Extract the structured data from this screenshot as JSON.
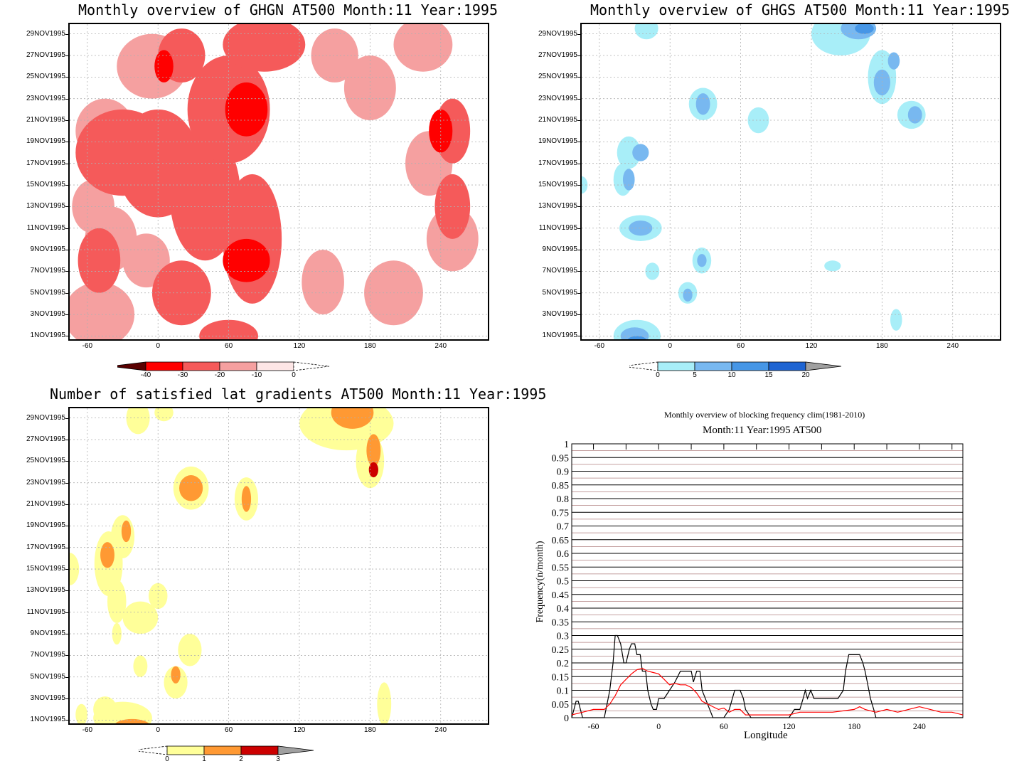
{
  "chart_data": [
    {
      "type": "heatmap",
      "title": "Monthly overview of GHGN AT500 Month:11 Year:1995",
      "x_ticks": [
        -60,
        0,
        60,
        120,
        180,
        240
      ],
      "xlim": [
        -75,
        280
      ],
      "y_ticks": [
        "1NOV1995",
        "3NOV1995",
        "5NOV1995",
        "7NOV1995",
        "9NOV1995",
        "11NOV1995",
        "13NOV1995",
        "15NOV1995",
        "17NOV1995",
        "19NOV1995",
        "21NOV1995",
        "23NOV1995",
        "25NOV1995",
        "27NOV1995",
        "29NOV1995"
      ],
      "colorbar": {
        "labels": [
          "-40",
          "-30",
          "-20",
          "-10",
          "0"
        ],
        "colors": [
          "#5a0000",
          "#ff0000",
          "#f55a5a",
          "#f5a0a0",
          "#fde6e6"
        ]
      },
      "regions": [
        {
          "level": -10,
          "color": "#f5a0a0",
          "blobs": [
            [
              -50,
              3,
              30,
              3
            ],
            [
              -40,
              10,
              22,
              3
            ],
            [
              -10,
              8,
              20,
              2.5
            ],
            [
              -45,
              20,
              25,
              3
            ],
            [
              -5,
              26,
              30,
              3
            ],
            [
              20,
              18,
              18,
              2.5
            ],
            [
              140,
              6,
              18,
              3
            ],
            [
              200,
              5,
              25,
              3
            ],
            [
              250,
              10,
              22,
              3
            ],
            [
              230,
              17,
              20,
              3
            ],
            [
              180,
              24,
              22,
              3
            ],
            [
              150,
              27,
              20,
              2.5
            ],
            [
              225,
              28,
              25,
              2.5
            ],
            [
              -55,
              13,
              18,
              2.5
            ],
            [
              35,
              11,
              15,
              2
            ]
          ]
        },
        {
          "level": -20,
          "color": "#f55a5a",
          "blobs": [
            [
              -30,
              18,
              40,
              4
            ],
            [
              0,
              17,
              35,
              5
            ],
            [
              40,
              14,
              30,
              6
            ],
            [
              60,
              22,
              35,
              5
            ],
            [
              80,
              10,
              25,
              6
            ],
            [
              20,
              5,
              25,
              3
            ],
            [
              -50,
              8,
              18,
              3
            ],
            [
              90,
              28,
              35,
              2.5
            ],
            [
              250,
              20,
              15,
              3
            ],
            [
              250,
              13,
              15,
              3
            ],
            [
              20,
              27,
              20,
              2.5
            ],
            [
              60,
              1,
              25,
              1.5
            ]
          ]
        },
        {
          "level": -30,
          "color": "#ff0000",
          "blobs": [
            [
              75,
              22,
              18,
              2.5
            ],
            [
              75,
              8,
              20,
              2
            ],
            [
              240,
              20,
              10,
              2
            ],
            [
              5,
              26,
              8,
              1.5
            ]
          ]
        }
      ]
    },
    {
      "type": "heatmap",
      "title": "Monthly overview of GHGS AT500 Month:11 Year:1995",
      "x_ticks": [
        -60,
        0,
        60,
        120,
        180,
        240
      ],
      "xlim": [
        -75,
        280
      ],
      "y_ticks": [
        "1NOV1995",
        "3NOV1995",
        "5NOV1995",
        "7NOV1995",
        "9NOV1995",
        "11NOV1995",
        "13NOV1995",
        "15NOV1995",
        "17NOV1995",
        "19NOV1995",
        "21NOV1995",
        "23NOV1995",
        "25NOV1995",
        "27NOV1995",
        "29NOV1995"
      ],
      "colorbar": {
        "labels": [
          "0",
          "5",
          "10",
          "15",
          "20"
        ],
        "colors": [
          "#a8eef8",
          "#78b8f0",
          "#4696e6",
          "#1e64d2",
          "#a0a0a0"
        ]
      },
      "regions": [
        {
          "level": 5,
          "color": "#a8eef8",
          "blobs": [
            [
              -20,
              29.5,
              10,
              1
            ],
            [
              -35,
              18,
              10,
              1.5
            ],
            [
              -40,
              15.5,
              8,
              1.5
            ],
            [
              -25,
              11,
              18,
              1.2
            ],
            [
              -15,
              7,
              6,
              0.8
            ],
            [
              28,
              22.5,
              12,
              1.5
            ],
            [
              27,
              8,
              8,
              1.2
            ],
            [
              15,
              5,
              8,
              1
            ],
            [
              75,
              21,
              9,
              1.2
            ],
            [
              145,
              29,
              25,
              2
            ],
            [
              180,
              25,
              12,
              2.5
            ],
            [
              205,
              21.5,
              12,
              1.3
            ],
            [
              192,
              2.5,
              5,
              1
            ],
            [
              -28,
              1,
              20,
              1.5
            ],
            [
              138,
              7.5,
              7,
              0.5
            ],
            [
              -75,
              15,
              5,
              0.8
            ]
          ]
        },
        {
          "level": 10,
          "color": "#78b8f0",
          "blobs": [
            [
              -25,
              18,
              7,
              0.8
            ],
            [
              -35,
              15.5,
              5,
              1
            ],
            [
              -25,
              11,
              10,
              0.7
            ],
            [
              27,
              8,
              4,
              0.6
            ],
            [
              15,
              4.8,
              4,
              0.6
            ],
            [
              28,
              22.5,
              6,
              1
            ],
            [
              180,
              24.5,
              7,
              1.2
            ],
            [
              190,
              26.5,
              5,
              0.8
            ],
            [
              208,
              21.5,
              6,
              0.8
            ],
            [
              160,
              29.5,
              15,
              1
            ],
            [
              -30,
              1,
              12,
              0.8
            ]
          ]
        },
        {
          "level": 15,
          "color": "#4696e6",
          "blobs": [
            [
              165,
              29.5,
              8,
              0.5
            ],
            [
              -28,
              0.6,
              8,
              0.4
            ]
          ]
        }
      ]
    },
    {
      "type": "heatmap",
      "title": "Number of satisfied lat gradients AT500 Month:11 Year:1995",
      "x_ticks": [
        -60,
        0,
        60,
        120,
        180,
        240
      ],
      "xlim": [
        -75,
        280
      ],
      "y_ticks": [
        "1NOV1995",
        "3NOV1995",
        "5NOV1995",
        "7NOV1995",
        "9NOV1995",
        "11NOV1995",
        "13NOV1995",
        "15NOV1995",
        "17NOV1995",
        "19NOV1995",
        "21NOV1995",
        "23NOV1995",
        "25NOV1995",
        "27NOV1995",
        "29NOV1995"
      ],
      "colorbar": {
        "labels": [
          "0",
          "1",
          "2",
          "3"
        ],
        "colors": [
          "#ffff99",
          "#ff9933",
          "#cc0000",
          "#a0a0a0"
        ]
      },
      "regions": [
        {
          "level": 1,
          "color": "#ffff99",
          "blobs": [
            [
              -17,
              29,
              10,
              1.5
            ],
            [
              5,
              29.5,
              8,
              0.8
            ],
            [
              160,
              28.5,
              40,
              2.5
            ],
            [
              180,
              25,
              12,
              2.5
            ],
            [
              28,
              22.5,
              15,
              2
            ],
            [
              75,
              21.5,
              10,
              2
            ],
            [
              -30,
              18,
              10,
              2
            ],
            [
              -42,
              15.5,
              12,
              3
            ],
            [
              -35,
              12,
              8,
              2
            ],
            [
              -15,
              10.5,
              15,
              1.5
            ],
            [
              0,
              12.5,
              8,
              1.2
            ],
            [
              -35,
              9,
              4,
              1
            ],
            [
              27,
              7.5,
              10,
              1.5
            ],
            [
              15,
              4.5,
              10,
              1.5
            ],
            [
              -15,
              6,
              6,
              1
            ],
            [
              -75,
              15,
              8,
              1.5
            ],
            [
              192,
              2.5,
              6,
              2
            ],
            [
              -30,
              1.2,
              25,
              1.5
            ],
            [
              -45,
              2,
              10,
              1.2
            ],
            [
              -65,
              1.5,
              5,
              1
            ]
          ]
        },
        {
          "level": 2,
          "color": "#ff9933",
          "blobs": [
            [
              165,
              29.5,
              18,
              1.5
            ],
            [
              183,
              26,
              6,
              1.5
            ],
            [
              28,
              22.5,
              10,
              1.2
            ],
            [
              75,
              21.5,
              4,
              1.2
            ],
            [
              -27,
              18.5,
              4,
              1
            ],
            [
              -43,
              16.3,
              6,
              1.2
            ],
            [
              15,
              5.2,
              4,
              0.8
            ],
            [
              -22,
              0.5,
              15,
              0.6
            ]
          ]
        },
        {
          "level": 3,
          "color": "#cc0000",
          "blobs": [
            [
              183,
              24.2,
              4,
              0.7
            ]
          ]
        }
      ]
    },
    {
      "type": "line",
      "title": "Monthly overview of blocking frequency clim(1981-2010)",
      "subtitle": "Month:11 Year:1995  AT500",
      "xlabel": "Longitude",
      "ylabel": "Frequency(n/month)",
      "xlim": [
        -80,
        280
      ],
      "ylim": [
        0,
        1
      ],
      "x_ticks": [
        -60,
        0,
        60,
        120,
        180,
        240
      ],
      "y_ticks": [
        "0",
        "0.05",
        "0.1",
        "0.15",
        "0.2",
        "0.25",
        "0.3",
        "0.35",
        "0.4",
        "0.45",
        "0.5",
        "0.55",
        "0.6",
        "0.65",
        "0.7",
        "0.75",
        "0.8",
        "0.85",
        "0.9",
        "0.95",
        "1"
      ],
      "series": [
        {
          "color": "#000000",
          "x": [
            -80,
            -78,
            -76,
            -74,
            -72,
            -70,
            -65,
            -60,
            -55,
            -50,
            -45,
            -42,
            -40,
            -38,
            -35,
            -32,
            -30,
            -27,
            -25,
            -22,
            -20,
            -17,
            -15,
            -12,
            -10,
            -7,
            -5,
            -2,
            0,
            5,
            10,
            15,
            20,
            25,
            30,
            32,
            35,
            38,
            40,
            45,
            50,
            55,
            60,
            65,
            70,
            72,
            75,
            78,
            80,
            85,
            90,
            95,
            100,
            105,
            110,
            115,
            120,
            125,
            130,
            133,
            135,
            137,
            140,
            143,
            145,
            150,
            155,
            160,
            165,
            170,
            172,
            175,
            178,
            180,
            183,
            185,
            188,
            190,
            192,
            195,
            198,
            200,
            205,
            210,
            220,
            240,
            260,
            280
          ],
          "y": [
            0,
            0.03,
            0.06,
            0.06,
            0.03,
            0,
            0,
            0,
            0,
            0,
            0.1,
            0.2,
            0.3,
            0.3,
            0.27,
            0.2,
            0.2,
            0.25,
            0.27,
            0.27,
            0.23,
            0.23,
            0.17,
            0.17,
            0.1,
            0.05,
            0.03,
            0.03,
            0.07,
            0.07,
            0.1,
            0.13,
            0.17,
            0.17,
            0.17,
            0.13,
            0.17,
            0.17,
            0.1,
            0.05,
            0,
            0,
            0,
            0.03,
            0.1,
            0.1,
            0.1,
            0.07,
            0.03,
            0,
            0,
            0,
            0,
            0,
            0,
            0,
            0,
            0.03,
            0.03,
            0.07,
            0.1,
            0.07,
            0.1,
            0.07,
            0.07,
            0.07,
            0.07,
            0.07,
            0.07,
            0.1,
            0.17,
            0.23,
            0.23,
            0.23,
            0.23,
            0.23,
            0.2,
            0.17,
            0.13,
            0.07,
            0.03,
            0,
            0,
            0,
            0,
            0,
            0,
            0
          ]
        },
        {
          "color": "#ff0000",
          "x": [
            -80,
            -70,
            -60,
            -50,
            -45,
            -40,
            -35,
            -30,
            -25,
            -20,
            -15,
            -10,
            -5,
            0,
            5,
            10,
            15,
            20,
            25,
            30,
            35,
            40,
            45,
            50,
            55,
            60,
            65,
            70,
            75,
            80,
            85,
            90,
            100,
            110,
            120,
            130,
            140,
            150,
            160,
            170,
            180,
            185,
            190,
            200,
            210,
            220,
            230,
            240,
            250,
            260,
            270,
            280
          ],
          "y": [
            0.01,
            0.02,
            0.03,
            0.03,
            0.05,
            0.08,
            0.12,
            0.14,
            0.16,
            0.175,
            0.18,
            0.17,
            0.165,
            0.16,
            0.14,
            0.12,
            0.125,
            0.12,
            0.12,
            0.11,
            0.09,
            0.06,
            0.05,
            0.04,
            0.03,
            0.035,
            0.02,
            0.03,
            0.03,
            0.01,
            0.01,
            0.01,
            0.01,
            0.01,
            0.01,
            0.02,
            0.02,
            0.02,
            0.02,
            0.025,
            0.03,
            0.04,
            0.03,
            0.02,
            0.03,
            0.02,
            0.03,
            0.04,
            0.03,
            0.02,
            0.02,
            0.01
          ]
        }
      ]
    }
  ]
}
